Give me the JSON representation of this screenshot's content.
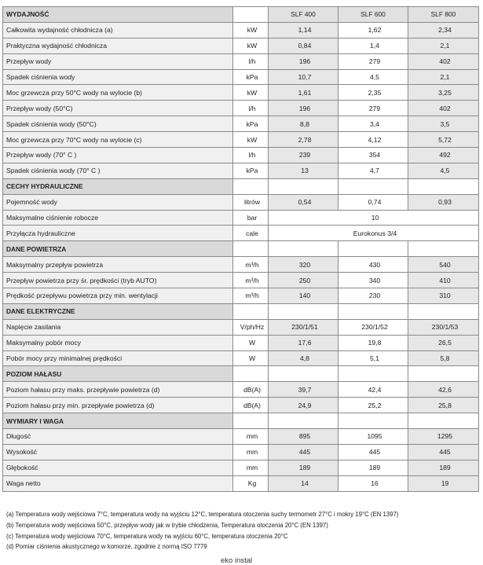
{
  "models": [
    "SLF 400",
    "SLF 600",
    "SLF 800"
  ],
  "sections": [
    {
      "title": "WYDAJNOŚĆ",
      "show_models": true,
      "rows": [
        {
          "label": "Całkowita wydajność chłodnicza (a)",
          "unit": "kW",
          "values": [
            "1,14",
            "1,62",
            "2,34"
          ]
        },
        {
          "label": "Praktyczna wydajność chłodnicza",
          "unit": "kW",
          "values": [
            "0,84",
            "1,4",
            "2,1"
          ]
        },
        {
          "label": "Przepływ wody",
          "unit": "l/h",
          "values": [
            "196",
            "279",
            "402"
          ]
        },
        {
          "label": "Spadek ciśnienia wody",
          "unit": "kPa",
          "values": [
            "10,7",
            "4,5",
            "2,1"
          ]
        },
        {
          "label": "Moc grzewcza przy 50°C wody na wylocie (b)",
          "unit": "kW",
          "values": [
            "1,61",
            "2,35",
            "3,25"
          ]
        },
        {
          "label": "Przepływ wody (50°C)",
          "unit": "l/h",
          "values": [
            "196",
            "279",
            "402"
          ]
        },
        {
          "label": "Spadek ciśnienia wody (50°C)",
          "unit": "kPa",
          "values": [
            "8,8",
            "3,4",
            "3,5"
          ]
        },
        {
          "label": "Moc grzewcza przy 70°C wody na wylocie (c)",
          "unit": "kW",
          "values": [
            "2,78",
            "4,12",
            "5,72"
          ]
        },
        {
          "label": "Przepływ wody (70° C )",
          "unit": "l/h",
          "values": [
            "239",
            "354",
            "492"
          ]
        },
        {
          "label": "Spadek ciśnienia wody (70° C )",
          "unit": "kPa",
          "values": [
            "13",
            "4,7",
            "4,5"
          ]
        }
      ]
    },
    {
      "title": "CECHY HYDRAULICZNE",
      "rows": [
        {
          "label": "Pojemność wody",
          "unit": "litrów",
          "values": [
            "0,54",
            "0,74",
            "0,93"
          ]
        },
        {
          "label": "Maksymalne ciśnienie robocze",
          "unit": "bar",
          "span": "10"
        },
        {
          "label": "Przyłącza hydrauliczne",
          "unit": "cale",
          "span": "Eurokonus 3/4"
        }
      ]
    },
    {
      "title": "DANE POWIETRZA",
      "rows": [
        {
          "label": "Maksymalny przepływ powietrza",
          "unit": "m³/h",
          "values": [
            "320",
            "430",
            "540"
          ]
        },
        {
          "label": "Przepływ powietrza przy śr. prędkości (tryb AUTO)",
          "unit": "m³/h",
          "values": [
            "250",
            "340",
            "410"
          ]
        },
        {
          "label": "Prędkość przepływu powietrza przy min. wentylacji",
          "unit": "m³/h",
          "values": [
            "140",
            "230",
            "310"
          ]
        }
      ]
    },
    {
      "title": "DANE ELEKTRYCZNE",
      "rows": [
        {
          "label": "Napięcie zasilania",
          "unit": "V/ph/Hz",
          "values": [
            "230/1/51",
            "230/1/52",
            "230/1/53"
          ]
        },
        {
          "label": "Maksymalny pobór mocy",
          "unit": "W",
          "values": [
            "17,6",
            "19,8",
            "26,5"
          ]
        },
        {
          "label": "Pobór mocy przy minimalnej prędkości",
          "unit": "W",
          "values": [
            "4,8",
            "5,1",
            "5,8"
          ]
        }
      ]
    },
    {
      "title": "POZIOM HAŁASU",
      "rows": [
        {
          "label": "Poziom hałasu przy maks. przepływie powietrza (d)",
          "unit": "dB(A)",
          "values": [
            "39,7",
            "42,4",
            "42,6"
          ]
        },
        {
          "label": "Poziom hałasu przy min. przepływie powietrza (d)",
          "unit": "dB(A)",
          "values": [
            "24,9",
            "25,2",
            "25,8"
          ]
        }
      ]
    },
    {
      "title": "WYMIARY I WAGA",
      "rows": [
        {
          "label": "Długość",
          "unit": "mm",
          "values": [
            "895",
            "1095",
            "1295"
          ]
        },
        {
          "label": "Wysokość",
          "unit": "mm",
          "values": [
            "445",
            "445",
            "445"
          ]
        },
        {
          "label": "Głębokość",
          "unit": "mm",
          "values": [
            "189",
            "189",
            "189"
          ]
        },
        {
          "label": "Waga netto",
          "unit": "Kg",
          "values": [
            "14",
            "16",
            "19"
          ]
        }
      ]
    }
  ],
  "notes": [
    "(a) Temperatura wody wejściowa 7°C, temperatura wody na wyjściu 12°C, temperatura otoczenia suchy termometr 27°C i mokry 19°C (EN 1397)",
    "(b) Temperatura wody wejściowa 50°C, przepływ wody jak w trybie chłodzenia, Temperatura otoczenia 20°C (EN 1397)",
    "(c) Temperatura wody wejściowa 70°C, temperatura wody na wyjściu 60°C, temperatura otoczenia 20°C",
    "(d) Pomiar ciśnienia akustycznego w komorze, zgodnie z normą ISO 7779"
  ],
  "footer": "eko instal"
}
